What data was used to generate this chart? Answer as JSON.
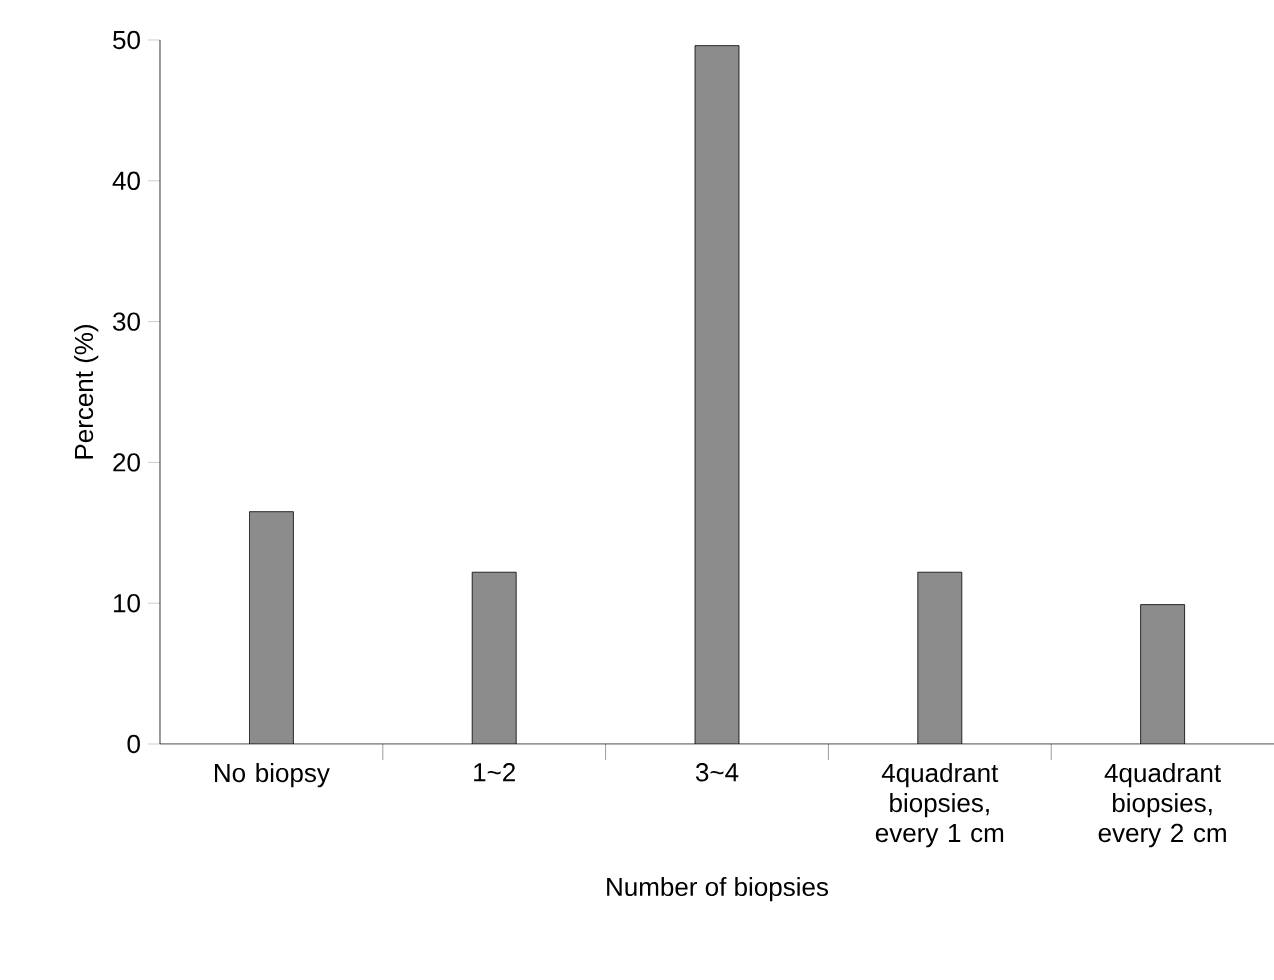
{
  "chart_data": {
    "type": "bar",
    "xlabel": "Number of biopsies",
    "ylabel": "Percent (%)",
    "categories": [
      "No biopsy",
      "1~2",
      "3~4",
      "4quadrant biopsies, every 1 cm",
      "4quadrant biopsies, every 2 cm"
    ],
    "values": [
      16.5,
      12.2,
      49.6,
      12.2,
      9.9
    ],
    "color": "#8c8c8c",
    "ylim": [
      0,
      50
    ],
    "yticks": [
      0,
      10,
      20,
      30,
      40,
      50
    ],
    "grid": false
  }
}
